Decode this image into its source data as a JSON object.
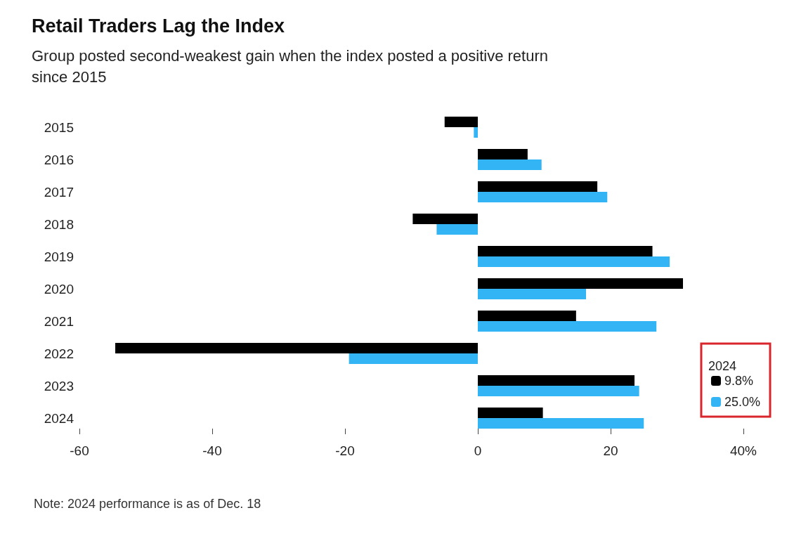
{
  "chart_data": {
    "type": "bar",
    "orientation": "horizontal",
    "title": "Retail Traders Lag the Index",
    "subtitle": "Group posted second-weakest gain when the index posted a positive return\nsince 2015",
    "categories": [
      "2015",
      "2016",
      "2017",
      "2018",
      "2019",
      "2020",
      "2021",
      "2022",
      "2023",
      "2024"
    ],
    "series": [
      {
        "name": "9.8%",
        "color": "#000000",
        "values": [
          -5,
          7.5,
          18,
          -9.8,
          26.3,
          30.9,
          14.8,
          -54.6,
          23.6,
          9.8
        ]
      },
      {
        "name": "25.0%",
        "color": "#33b5f5",
        "values": [
          -0.6,
          9.6,
          19.5,
          -6.2,
          28.9,
          16.3,
          26.9,
          -19.4,
          24.3,
          25.0
        ]
      }
    ],
    "xlim": [
      -60,
      40
    ],
    "xticks": [
      -60,
      -40,
      -20,
      0,
      20,
      {
        "value": 40,
        "label": "40%"
      }
    ],
    "legend": "bottom right",
    "legend_title": "2024",
    "grid": false,
    "annotations": [
      "Note: 2024 performance is as of Dec. 18"
    ]
  }
}
